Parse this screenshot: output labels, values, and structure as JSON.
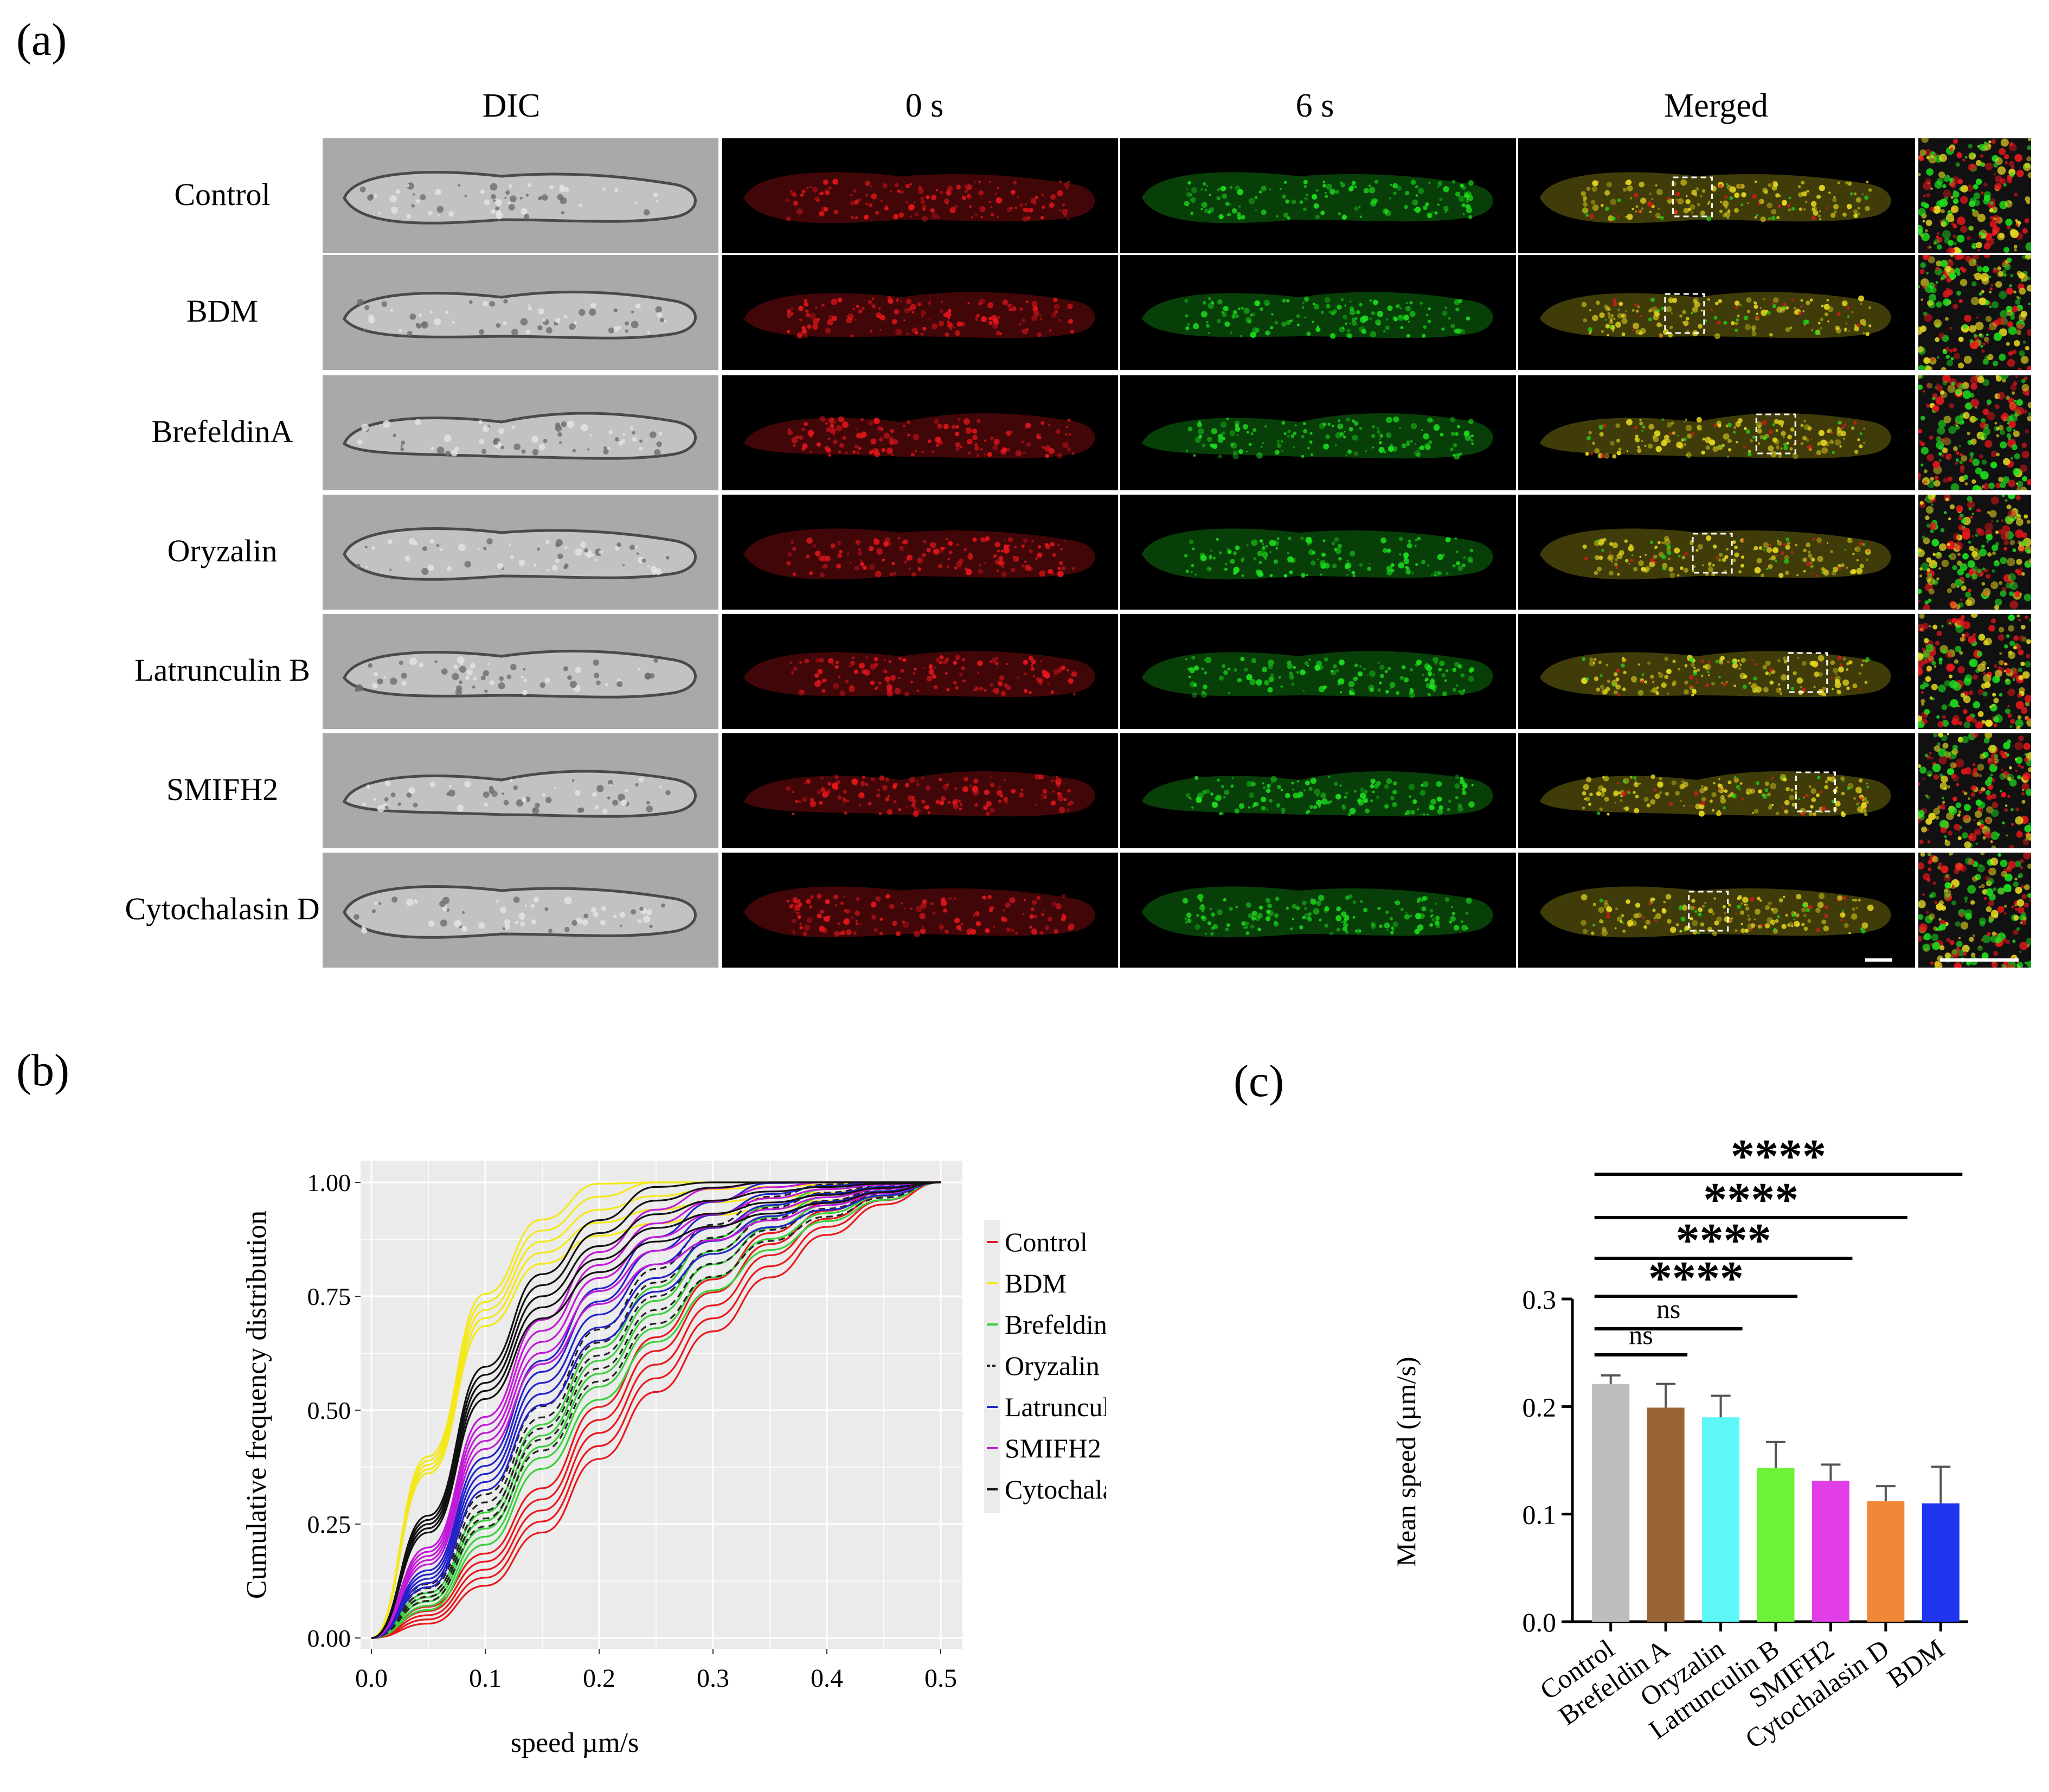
{
  "panels": {
    "a": "(a)",
    "b": "(b)",
    "c": "(c)"
  },
  "columns": [
    "DIC",
    "0 s",
    "6 s",
    "Merged"
  ],
  "rows": [
    "Control",
    "BDM",
    "BrefeldinA",
    "Oryzalin",
    "Latrunculin B",
    "SMIFH2",
    "Cytochalasin D"
  ],
  "colors": {
    "red": "#e8171c",
    "green": "#1ee01e",
    "yellow": "#e6d820"
  },
  "chart_data": [
    {
      "type": "line",
      "title": "",
      "xlabel": "speed µm/s",
      "ylabel": "Cumulative frequency distribution",
      "xlim": [
        0,
        0.5
      ],
      "ylim": [
        0,
        1
      ],
      "x_ticks": [
        "0.0",
        "0.1",
        "0.2",
        "0.3",
        "0.4",
        "0.5"
      ],
      "y_ticks": [
        "0.00",
        "0.25",
        "0.50",
        "0.75",
        "1.00"
      ],
      "legend_position": "right",
      "series": [
        {
          "name": "Control",
          "color": "#e8181c",
          "dash": false,
          "curves": [
            [
              0,
              0
            ],
            [
              0.05,
              0.05
            ],
            [
              0.1,
              0.15
            ],
            [
              0.15,
              0.28
            ],
            [
              0.2,
              0.45
            ],
            [
              0.25,
              0.6
            ],
            [
              0.3,
              0.73
            ],
            [
              0.35,
              0.84
            ],
            [
              0.4,
              0.92
            ],
            [
              0.45,
              0.97
            ],
            [
              0.5,
              1.0
            ]
          ]
        },
        {
          "name": "BDM",
          "color": "#f4e81a",
          "dash": false,
          "curves": [
            [
              0,
              0
            ],
            [
              0.05,
              0.38
            ],
            [
              0.1,
              0.72
            ],
            [
              0.15,
              0.87
            ],
            [
              0.2,
              0.94
            ],
            [
              0.25,
              0.97
            ],
            [
              0.3,
              0.985
            ],
            [
              0.35,
              0.99
            ],
            [
              0.4,
              0.995
            ],
            [
              0.45,
              0.998
            ],
            [
              0.5,
              1.0
            ]
          ]
        },
        {
          "name": "Brefeldin A",
          "color": "#3ccf3c",
          "dash": false,
          "curves": [
            [
              0,
              0
            ],
            [
              0.05,
              0.08
            ],
            [
              0.1,
              0.24
            ],
            [
              0.15,
              0.42
            ],
            [
              0.2,
              0.58
            ],
            [
              0.25,
              0.71
            ],
            [
              0.3,
              0.82
            ],
            [
              0.35,
              0.9
            ],
            [
              0.4,
              0.95
            ],
            [
              0.45,
              0.98
            ],
            [
              0.5,
              1.0
            ]
          ]
        },
        {
          "name": "Oryzalin",
          "color": "#222222",
          "dash": true,
          "curves": [
            [
              0,
              0
            ],
            [
              0.05,
              0.1
            ],
            [
              0.1,
              0.28
            ],
            [
              0.15,
              0.46
            ],
            [
              0.2,
              0.62
            ],
            [
              0.25,
              0.75
            ],
            [
              0.3,
              0.85
            ],
            [
              0.35,
              0.92
            ],
            [
              0.4,
              0.96
            ],
            [
              0.45,
              0.985
            ],
            [
              0.5,
              1.0
            ]
          ]
        },
        {
          "name": "Latrunculin B",
          "color": "#2323c8",
          "dash": false,
          "curves": [
            [
              0,
              0
            ],
            [
              0.05,
              0.13
            ],
            [
              0.1,
              0.36
            ],
            [
              0.15,
              0.56
            ],
            [
              0.2,
              0.71
            ],
            [
              0.25,
              0.82
            ],
            [
              0.3,
              0.9
            ],
            [
              0.35,
              0.95
            ],
            [
              0.4,
              0.975
            ],
            [
              0.45,
              0.99
            ],
            [
              0.5,
              1.0
            ]
          ]
        },
        {
          "name": "SMIFH2",
          "color": "#c21ad8",
          "dash": false,
          "curves": [
            [
              0,
              0
            ],
            [
              0.05,
              0.18
            ],
            [
              0.1,
              0.45
            ],
            [
              0.15,
              0.65
            ],
            [
              0.2,
              0.79
            ],
            [
              0.25,
              0.88
            ],
            [
              0.3,
              0.93
            ],
            [
              0.35,
              0.965
            ],
            [
              0.4,
              0.985
            ],
            [
              0.45,
              0.995
            ],
            [
              0.5,
              1.0
            ]
          ]
        },
        {
          "name": "Cytochalasin D",
          "color": "#111111",
          "dash": false,
          "curves": [
            [
              0,
              0
            ],
            [
              0.05,
              0.25
            ],
            [
              0.1,
              0.56
            ],
            [
              0.15,
              0.75
            ],
            [
              0.2,
              0.86
            ],
            [
              0.25,
              0.93
            ],
            [
              0.3,
              0.96
            ],
            [
              0.35,
              0.98
            ],
            [
              0.4,
              0.99
            ],
            [
              0.45,
              0.997
            ],
            [
              0.5,
              1.0
            ]
          ]
        }
      ]
    },
    {
      "type": "bar",
      "title": "",
      "xlabel": "",
      "ylabel": "Mean speed (µm/s)",
      "ylim": [
        0,
        0.3
      ],
      "y_ticks": [
        "0.0",
        "0.1",
        "0.2",
        "0.3"
      ],
      "categories": [
        "Control",
        "Brefeldin A",
        "Oryzalin",
        "Latrunculin B",
        "SMIFH2",
        "Cytochalasin D",
        "BDM"
      ],
      "values": [
        0.221,
        0.199,
        0.19,
        0.143,
        0.131,
        0.112,
        0.11
      ],
      "errors": [
        0.008,
        0.022,
        0.02,
        0.024,
        0.015,
        0.014,
        0.034
      ],
      "bar_colors": [
        "#bdbdbd",
        "#9a6535",
        "#5ef7f7",
        "#6ef238",
        "#e23ee8",
        "#f08838",
        "#1f35f0"
      ],
      "significance": [
        {
          "from": "Control",
          "to": "Brefeldin A",
          "label": "ns"
        },
        {
          "from": "Control",
          "to": "Oryzalin",
          "label": "ns"
        },
        {
          "from": "Control",
          "to": "Latrunculin B",
          "label": "****"
        },
        {
          "from": "Control",
          "to": "SMIFH2",
          "label": "****"
        },
        {
          "from": "Control",
          "to": "Cytochalasin D",
          "label": "****"
        },
        {
          "from": "Control",
          "to": "BDM",
          "label": "****"
        }
      ]
    }
  ]
}
